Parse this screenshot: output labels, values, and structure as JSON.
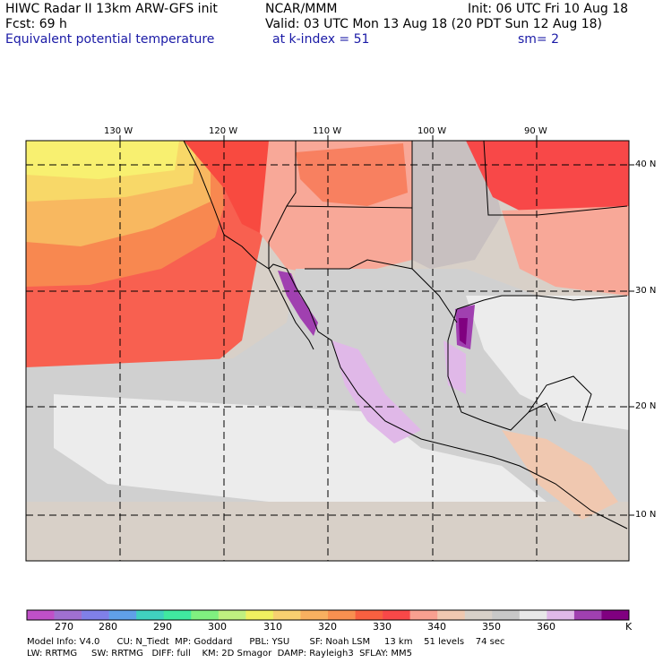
{
  "header": {
    "line1_left": "HIWC Radar II 13km ARW-GFS init",
    "line1_mid": "NCAR/MMM",
    "line1_right": "Init: 06 UTC Fri 10 Aug 18",
    "line2_left": "Fcst:   69 h",
    "line2_right": "Valid: 03 UTC Mon 13 Aug 18 (20 PDT Sun 12 Aug 18)",
    "line3_field": "Equivalent potential temperature",
    "line3_level": "at k-index =  51",
    "line3_smooth": "sm= 2"
  },
  "map": {
    "lon_labels": [
      "130 W",
      "120 W",
      "110 W",
      "100 W",
      "90 W"
    ],
    "lat_labels": [
      "40 N",
      "30 N",
      "20 N",
      "10 N"
    ]
  },
  "colorbar": {
    "unit": "K",
    "labels": [
      "270",
      "280",
      "290",
      "300",
      "310",
      "320",
      "330",
      "340",
      "350",
      "360"
    ],
    "colors": [
      "#c050c8",
      "#a070d0",
      "#8080e8",
      "#60a0e8",
      "#40d0c0",
      "#40e8a0",
      "#80f080",
      "#c0f080",
      "#f0f060",
      "#f8d070",
      "#f8b060",
      "#f89050",
      "#f86040",
      "#f84848",
      "#f8a090",
      "#f0c8b0",
      "#d8d0c8",
      "#c8c8c8",
      "#e8e8e8",
      "#e0b8e8",
      "#a040b0",
      "#800080"
    ]
  },
  "model_info": {
    "line1": "Model Info: V4.0      CU: N_Tiedt  MP: Goddard      PBL: YSU       SF: Noah LSM     13 km    51 levels    74 sec",
    "line2": "LW: RRTMG     SW: RRTMG   DIFF: full    KM: 2D Smagor  DAMP: Rayleigh3  SFLAY: MM5"
  }
}
